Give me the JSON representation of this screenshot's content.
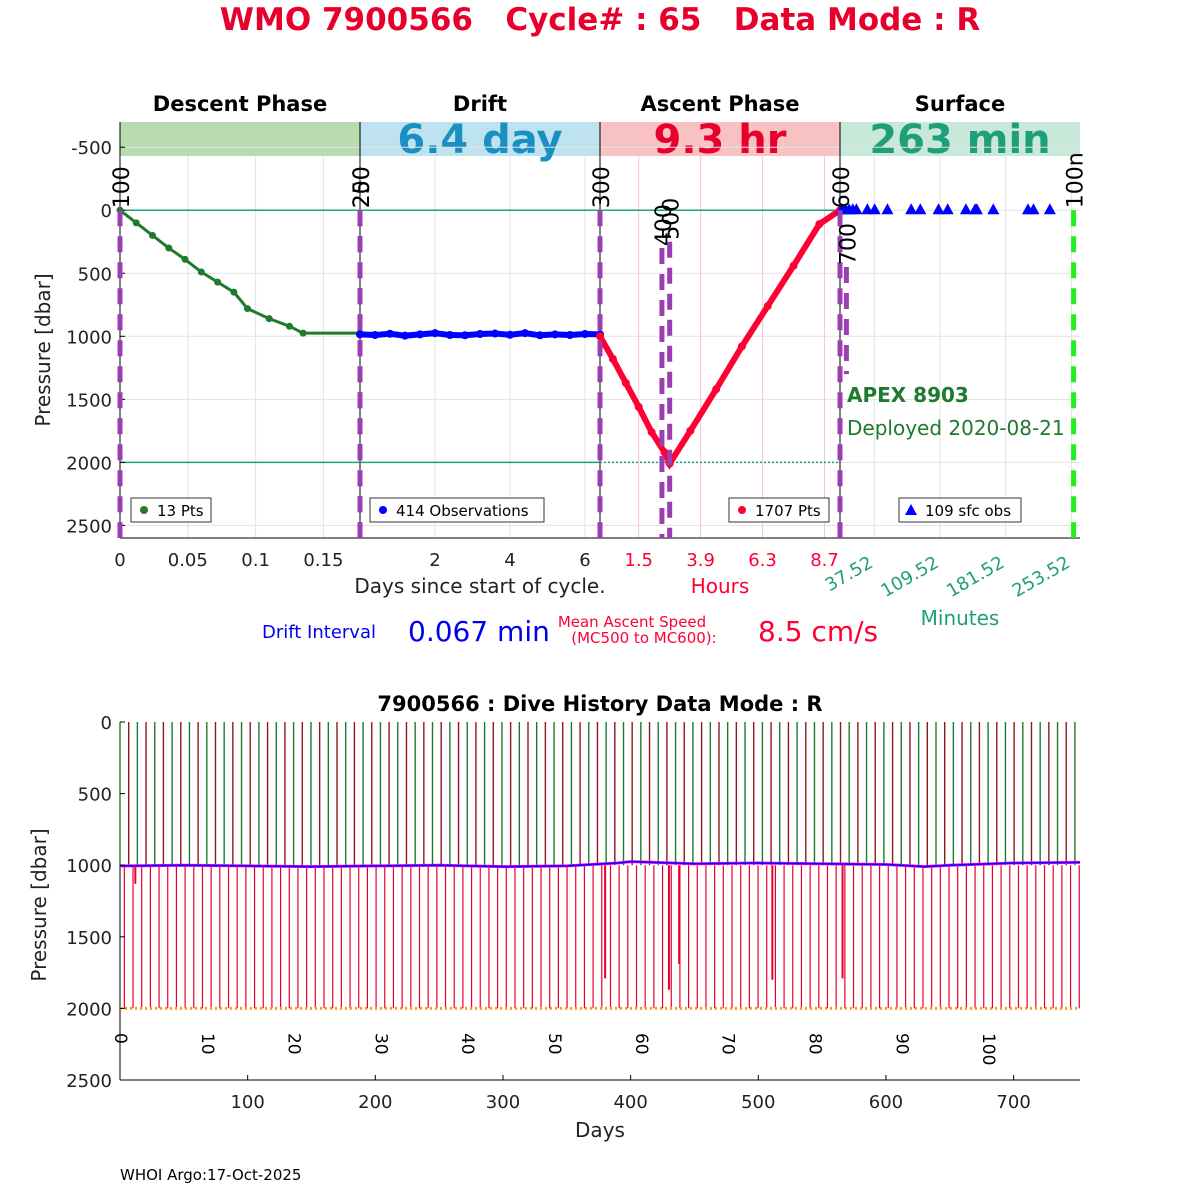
{
  "page": {
    "title": "WMO 7900566   Cycle# : 65   Data Mode : R",
    "footer": "WHOI Argo:17-Oct-2025"
  },
  "colors": {
    "title": "#e8002d",
    "descent": "#1f7a2e",
    "drift": "#0000ff",
    "ascent": "#ff0033",
    "surface": "#0000ff",
    "teal": "#1f9e7a",
    "marker_line": "#9b3fb0",
    "green_dash": "#22ee22"
  },
  "chart_data": [
    {
      "type": "line",
      "title": "",
      "ylabel": "Pressure [dbar]",
      "ylim": [
        2600,
        -700
      ],
      "yticks": [
        "-500",
        "0",
        "500",
        "1000",
        "1500",
        "2000",
        "2500"
      ],
      "ytick_values": [
        -500,
        0,
        500,
        1000,
        1500,
        2000,
        2500
      ],
      "reference_lines_dbar": [
        0,
        2000
      ],
      "grid": true,
      "phases": [
        {
          "name": "Descent Phase",
          "banner_value": "",
          "banner_color": "#b8dcb0",
          "value_color": "#1f7a2e"
        },
        {
          "name": "Drift",
          "banner_value": "6.4 day",
          "banner_color": "#bfe3ee",
          "value_color": "#1a8fc4"
        },
        {
          "name": "Ascent Phase",
          "banner_value": "9.3 hr",
          "banner_color": "#f8c2c2",
          "value_color": "#e8002d"
        },
        {
          "name": "Surface",
          "banner_value": "263 min",
          "banner_color": "#c8e8da",
          "value_color": "#1f9e7a"
        }
      ],
      "descent": {
        "legend": "13 Pts",
        "xlim": [
          0,
          0.177
        ],
        "xticks": [
          "0",
          "0.05",
          "0.1",
          "0.15"
        ],
        "xtick_values": [
          0,
          0.05,
          0.1,
          0.15
        ],
        "x": [
          0,
          0.012,
          0.024,
          0.036,
          0.048,
          0.06,
          0.072,
          0.084,
          0.094,
          0.11,
          0.125,
          0.135,
          0.177
        ],
        "y": [
          0,
          100,
          200,
          300,
          390,
          490,
          570,
          650,
          780,
          860,
          920,
          975,
          975
        ]
      },
      "drift": {
        "legend": "414 Observations",
        "xlim": [
          0,
          6.4
        ],
        "xticks": [
          "2",
          "4",
          "6"
        ],
        "xtick_values": [
          2,
          4,
          6
        ],
        "x": [
          0,
          0.4,
          0.8,
          1.2,
          1.6,
          2.0,
          2.4,
          2.8,
          3.2,
          3.6,
          4.0,
          4.4,
          4.8,
          5.2,
          5.6,
          6.0,
          6.4
        ],
        "y": [
          985,
          990,
          980,
          995,
          985,
          975,
          990,
          992,
          982,
          978,
          988,
          975,
          992,
          985,
          990,
          982,
          985
        ]
      },
      "ascent": {
        "legend": "1707 Pts",
        "axis_label": "Hours",
        "xlim": [
          0,
          9.3
        ],
        "xticks": [
          "1.5",
          "3.9",
          "6.3",
          "8.7"
        ],
        "xtick_values": [
          1.5,
          3.9,
          6.3,
          8.7
        ],
        "x": [
          0,
          0.5,
          1.0,
          1.5,
          2.0,
          2.5,
          2.7,
          3.5,
          4.5,
          5.5,
          6.5,
          7.5,
          8.5,
          9.3
        ],
        "y": [
          1000,
          1180,
          1370,
          1560,
          1760,
          1920,
          2010,
          1750,
          1420,
          1080,
          760,
          440,
          110,
          0
        ]
      },
      "surface": {
        "legend": "109 sfc obs",
        "axis_label": "Minutes",
        "xlim": [
          0,
          263
        ],
        "xticks": [
          "37.52",
          "109.52",
          "181.52",
          "253.52"
        ],
        "xtick_values": [
          37.52,
          109.52,
          181.52,
          253.52
        ],
        "x": [
          2,
          6,
          10,
          14,
          18,
          30,
          38,
          52,
          78,
          88,
          108,
          118,
          138,
          148,
          150,
          168,
          206,
          212,
          230
        ],
        "y": [
          0,
          0,
          0,
          0,
          0,
          0,
          0,
          0,
          0,
          0,
          0,
          0,
          0,
          0,
          0,
          0,
          0,
          0,
          0
        ]
      },
      "xlabel": "Days since start of cycle.",
      "event_markers": [
        {
          "label": "100",
          "segment": "descent",
          "at": 0,
          "y_from": -700,
          "y_to": 2600,
          "color": "#9b3fb0"
        },
        {
          "label": "200",
          "segment": "drift",
          "at": 0,
          "y_from": -700,
          "y_to": 2600,
          "color": "#9b3fb0"
        },
        {
          "label": "250",
          "segment": "drift",
          "at": 0,
          "y_from": 0,
          "y_to": 2600,
          "color": "#9b3fb0"
        },
        {
          "label": "300",
          "segment": "ascent",
          "at": 0,
          "y_from": -700,
          "y_to": 2600,
          "color": "#9b3fb0"
        },
        {
          "label": "400",
          "segment": "ascent",
          "at": 2.4,
          "y_from": 300,
          "y_to": 2600,
          "color": "#9b3fb0"
        },
        {
          "label": "500",
          "segment": "ascent",
          "at": 2.7,
          "y_from": 250,
          "y_to": 2600,
          "color": "#9b3fb0"
        },
        {
          "label": "600",
          "segment": "surface",
          "at": 0,
          "y_from": -700,
          "y_to": 2600,
          "color": "#9b3fb0"
        },
        {
          "label": "700",
          "segment": "surface",
          "at": 7,
          "y_from": 450,
          "y_to": 1300,
          "color": "#9b3fb0"
        },
        {
          "label": "100n",
          "segment": "surface",
          "at": 256,
          "y_from": 0,
          "y_to": 2600,
          "color": "#22ee22"
        }
      ],
      "annotations": {
        "float_model": "APEX 8903",
        "deployed": "Deployed 2020-08-21",
        "drift_interval_label": "Drift Interval",
        "drift_interval_value": "0.067 min",
        "ascent_speed_label_line1": "Mean Ascent Speed",
        "ascent_speed_label_line2": "(MC500 to MC600):",
        "ascent_speed_value": "8.5 cm/s"
      }
    },
    {
      "type": "line",
      "title": "7900566 : Dive History      Data Mode : R",
      "xlabel": "Days",
      "ylabel": "Pressure [dbar]",
      "xlim": [
        0,
        752
      ],
      "ylim": [
        2500,
        0
      ],
      "xticks": [
        "100",
        "200",
        "300",
        "400",
        "500",
        "600",
        "700"
      ],
      "xtick_values": [
        100,
        200,
        300,
        400,
        500,
        600,
        700
      ],
      "yticks": [
        "0",
        "500",
        "1000",
        "1500",
        "2000",
        "2500"
      ],
      "ytick_values": [
        0,
        500,
        1000,
        1500,
        2000,
        2500
      ],
      "cycle_count": 111,
      "cycle_start_days": [
        0,
        6.8,
        13.6,
        20.4,
        27.2,
        34.0,
        40.8,
        47.6,
        54.4,
        61.2,
        68.0,
        74.8,
        81.6,
        88.4,
        95.2,
        102.0,
        108.8,
        115.6,
        122.4,
        129.2,
        136.0,
        142.8,
        149.6,
        156.4,
        163.2,
        170.0,
        176.8,
        183.6,
        190.4,
        197.2,
        204.0,
        210.8,
        217.6,
        224.4,
        231.2,
        238.0,
        244.8,
        251.6,
        258.4,
        265.2,
        272.0,
        278.8,
        285.6,
        292.4,
        299.2,
        306.0,
        312.8,
        319.6,
        326.4,
        333.2,
        340.0,
        346.8,
        353.6,
        360.4,
        367.2,
        374.0,
        380.8,
        387.6,
        394.4,
        401.2,
        408.0,
        414.8,
        421.6,
        428.4,
        435.2,
        442.0,
        448.8,
        455.6,
        462.4,
        469.2,
        476.0,
        482.8,
        489.6,
        496.4,
        503.2,
        510.0,
        516.8,
        523.6,
        530.4,
        537.2,
        544.0,
        550.8,
        557.6,
        564.4,
        571.2,
        578.0,
        584.8,
        591.6,
        598.4,
        605.2,
        612.0,
        618.8,
        625.6,
        632.4,
        639.2,
        646.0,
        652.8,
        659.6,
        666.4,
        673.2,
        680.0,
        686.8,
        693.6,
        700.4,
        707.2,
        714.0,
        720.8,
        727.6,
        734.4,
        741.2,
        748.0
      ],
      "cycle_labels": [
        "0",
        "10",
        "20",
        "30",
        "40",
        "50",
        "60",
        "70",
        "80",
        "90",
        "100"
      ],
      "cycle_label_values": [
        0,
        10,
        20,
        30,
        40,
        50,
        60,
        70,
        80,
        90,
        100
      ],
      "parking_pressure_dbar": 1000,
      "profile_pressure_dbar": 2000,
      "drift_days": [
        0,
        50,
        100,
        150,
        200,
        250,
        300,
        350,
        390,
        400,
        450,
        500,
        550,
        600,
        630,
        650,
        700,
        752
      ],
      "drift_pressure": [
        1005,
        1000,
        1005,
        1010,
        1005,
        1000,
        1010,
        1005,
        985,
        975,
        990,
        985,
        990,
        995,
        1010,
        1000,
        985,
        980
      ],
      "shallow_profiles": [
        {
          "day": 12,
          "pressure": 1130
        },
        {
          "day": 380,
          "pressure": 1790
        },
        {
          "day": 430,
          "pressure": 1870
        },
        {
          "day": 438,
          "pressure": 1690
        },
        {
          "day": 511,
          "pressure": 1800
        },
        {
          "day": 566,
          "pressure": 1790
        }
      ]
    }
  ]
}
